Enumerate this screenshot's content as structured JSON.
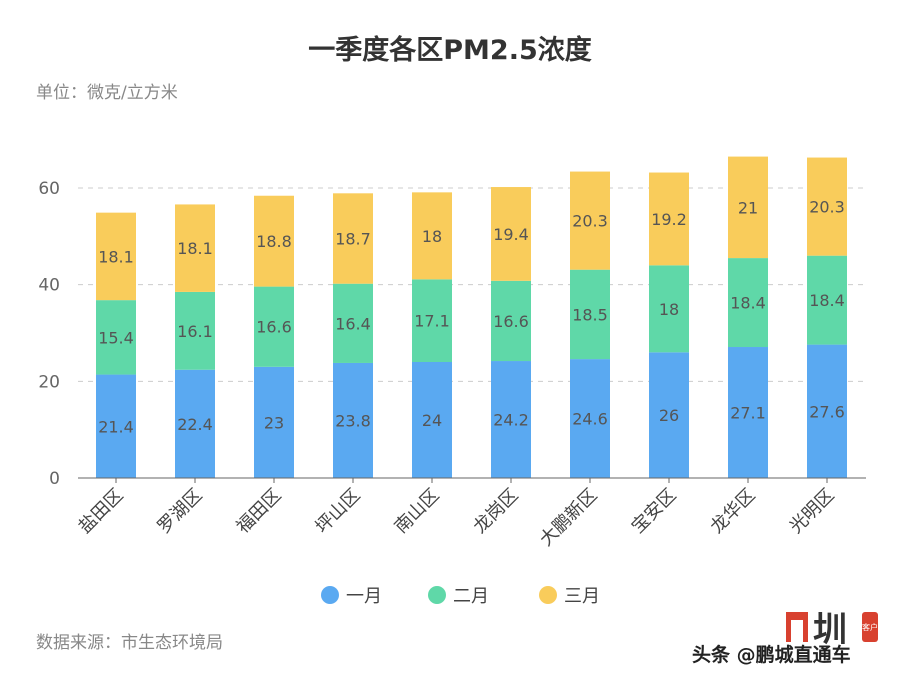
{
  "chart_data": {
    "type": "bar",
    "stacked": true,
    "title": "一季度各区PM2.5浓度",
    "subtitle": "单位：微克/立方米",
    "source": "数据来源：市生态环境局",
    "xlabel": "",
    "ylabel": "",
    "categories": [
      "盐田区",
      "罗湖区",
      "福田区",
      "坪山区",
      "南山区",
      "龙岗区",
      "大鹏新区",
      "宝安区",
      "龙华区",
      "光明区"
    ],
    "series": [
      {
        "name": "一月",
        "color": "#5aa9f1",
        "values": [
          21.4,
          22.4,
          23,
          23.8,
          24,
          24.2,
          24.6,
          26,
          27.1,
          27.6
        ]
      },
      {
        "name": "二月",
        "color": "#5fd8a8",
        "values": [
          15.4,
          16.1,
          16.6,
          16.4,
          17.1,
          16.6,
          18.5,
          18,
          18.4,
          18.4
        ]
      },
      {
        "name": "三月",
        "color": "#f9cc5b",
        "values": [
          18.1,
          18.1,
          18.8,
          18.7,
          18,
          19.4,
          20.3,
          19.2,
          21,
          20.3
        ]
      }
    ],
    "yticks": [
      0,
      20,
      40,
      60
    ],
    "ylim": [
      0,
      60
    ],
    "grid": true,
    "legend": "bottom"
  },
  "watermark": {
    "text": "头条 @鹏城直通车",
    "logo_char": "圳",
    "logo_tag": "客户"
  }
}
